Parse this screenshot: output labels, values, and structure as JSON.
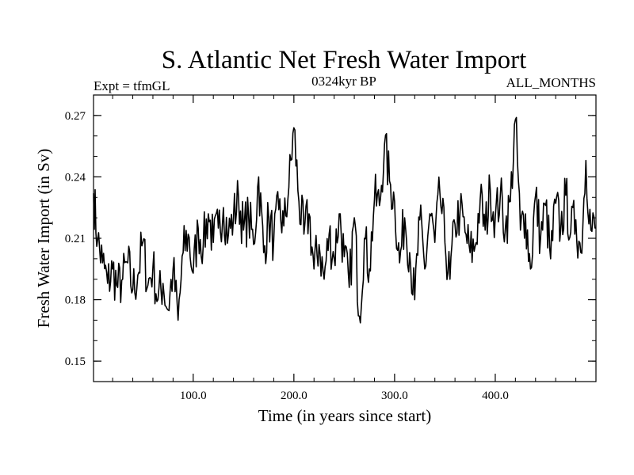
{
  "chart_data": {
    "type": "line",
    "title": "S. Atlantic Net Fresh Water Import",
    "subtitle_left": "Expt = tfmGL",
    "subtitle_center": "0324kyr BP",
    "subtitle_right": "ALL_MONTHS",
    "xlabel": "Time (in years since start)",
    "ylabel": "Fresh Water Import (in Sv)",
    "xlim": [
      1,
      500
    ],
    "ylim": [
      0.14,
      0.28
    ],
    "x_ticks": [
      100,
      200,
      300,
      400
    ],
    "x_tick_labels": [
      "100.0",
      "200.0",
      "300.0",
      "400.0"
    ],
    "y_ticks": [
      0.15,
      0.18,
      0.21,
      0.24,
      0.27
    ],
    "y_tick_labels": [
      "0.15",
      "0.18",
      "0.21",
      "0.24",
      "0.27"
    ],
    "grid": false,
    "series": [
      {
        "color": "#000000",
        "x": [
          1,
          5,
          10,
          15,
          20,
          25,
          30,
          35,
          40,
          45,
          50,
          55,
          60,
          65,
          70,
          75,
          80,
          85,
          90,
          95,
          100,
          105,
          110,
          115,
          120,
          125,
          130,
          135,
          140,
          145,
          150,
          155,
          160,
          165,
          170,
          175,
          180,
          185,
          190,
          195,
          200,
          205,
          210,
          215,
          220,
          225,
          230,
          235,
          240,
          245,
          250,
          255,
          260,
          265,
          270,
          275,
          280,
          285,
          290,
          295,
          300,
          305,
          310,
          315,
          320,
          325,
          330,
          335,
          340,
          345,
          350,
          355,
          360,
          365,
          370,
          375,
          380,
          385,
          390,
          395,
          400,
          405,
          410,
          415,
          420,
          425,
          430,
          435,
          440,
          445,
          450,
          455,
          460,
          465,
          470,
          475,
          480,
          485,
          490,
          495,
          500
        ],
        "y": [
          0.232,
          0.209,
          0.198,
          0.188,
          0.195,
          0.186,
          0.19,
          0.198,
          0.185,
          0.192,
          0.208,
          0.187,
          0.196,
          0.18,
          0.188,
          0.175,
          0.195,
          0.17,
          0.203,
          0.212,
          0.193,
          0.215,
          0.207,
          0.222,
          0.208,
          0.215,
          0.225,
          0.212,
          0.22,
          0.23,
          0.214,
          0.221,
          0.207,
          0.24,
          0.203,
          0.22,
          0.209,
          0.224,
          0.216,
          0.235,
          0.264,
          0.228,
          0.212,
          0.222,
          0.195,
          0.207,
          0.19,
          0.212,
          0.2,
          0.222,
          0.201,
          0.186,
          0.22,
          0.172,
          0.21,
          0.195,
          0.229,
          0.226,
          0.256,
          0.238,
          0.228,
          0.198,
          0.22,
          0.203,
          0.18,
          0.219,
          0.195,
          0.222,
          0.208,
          0.232,
          0.208,
          0.19,
          0.217,
          0.223,
          0.213,
          0.203,
          0.206,
          0.229,
          0.214,
          0.234,
          0.22,
          0.231,
          0.215,
          0.228,
          0.268,
          0.214,
          0.222,
          0.195,
          0.231,
          0.21,
          0.226,
          0.2,
          0.227,
          0.214,
          0.231,
          0.213,
          0.219,
          0.203,
          0.248,
          0.214,
          0.215
        ]
      }
    ]
  }
}
